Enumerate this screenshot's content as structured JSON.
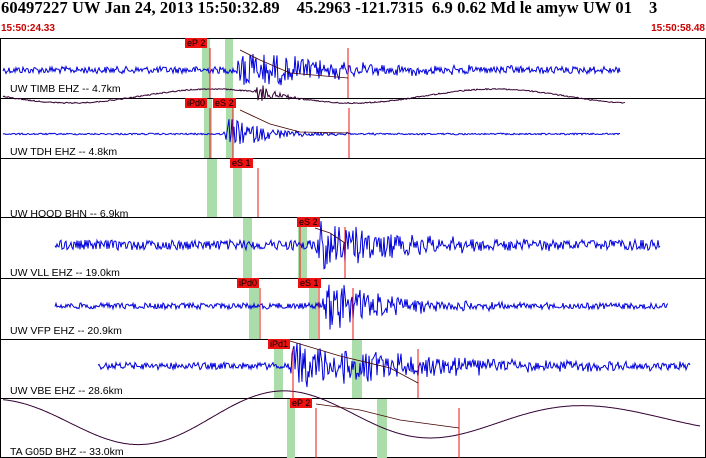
{
  "header": {
    "title": "60497227 UW Jan 24, 2013 15:50:32.89    45.2963 -121.7315  6.9 0.62 Md le amyw UW 01    3",
    "start_time": "15:50:24.33",
    "end_time": "15:50:58.48"
  },
  "colors": {
    "trace_blue": "#0000dd",
    "trace_dark": "#330033",
    "pick_red": "#ee1111",
    "window_green": "#aaddaa",
    "frame": "#000000"
  },
  "traces": [
    {
      "label": "UW TIMB EHZ -- 4.7km",
      "picks": [
        "eP 2"
      ],
      "color": "blue",
      "amplitude": "moderate"
    },
    {
      "label": "UW TDH EHZ -- 4.8km",
      "picks": [
        "iPd0",
        "eS 2"
      ],
      "color": "blue",
      "amplitude": "moderate"
    },
    {
      "label": "UW HOOD BHN -- 6.9km",
      "picks": [
        "eS 1"
      ],
      "color": "dark",
      "amplitude": "low"
    },
    {
      "label": "UW VLL EHZ -- 19.0km",
      "picks": [
        "eS 2"
      ],
      "color": "blue",
      "amplitude": "high"
    },
    {
      "label": "UW VFP EHZ -- 20.9km",
      "picks": [
        "iPd0",
        "eS 1"
      ],
      "color": "blue",
      "amplitude": "high"
    },
    {
      "label": "UW VBE EHZ -- 28.6km",
      "picks": [
        "iPd1"
      ],
      "color": "blue",
      "amplitude": "high"
    },
    {
      "label": "TA G05D BHZ -- 33.0km",
      "picks": [
        "eP 2"
      ],
      "color": "dark",
      "amplitude": "long-period"
    }
  ]
}
